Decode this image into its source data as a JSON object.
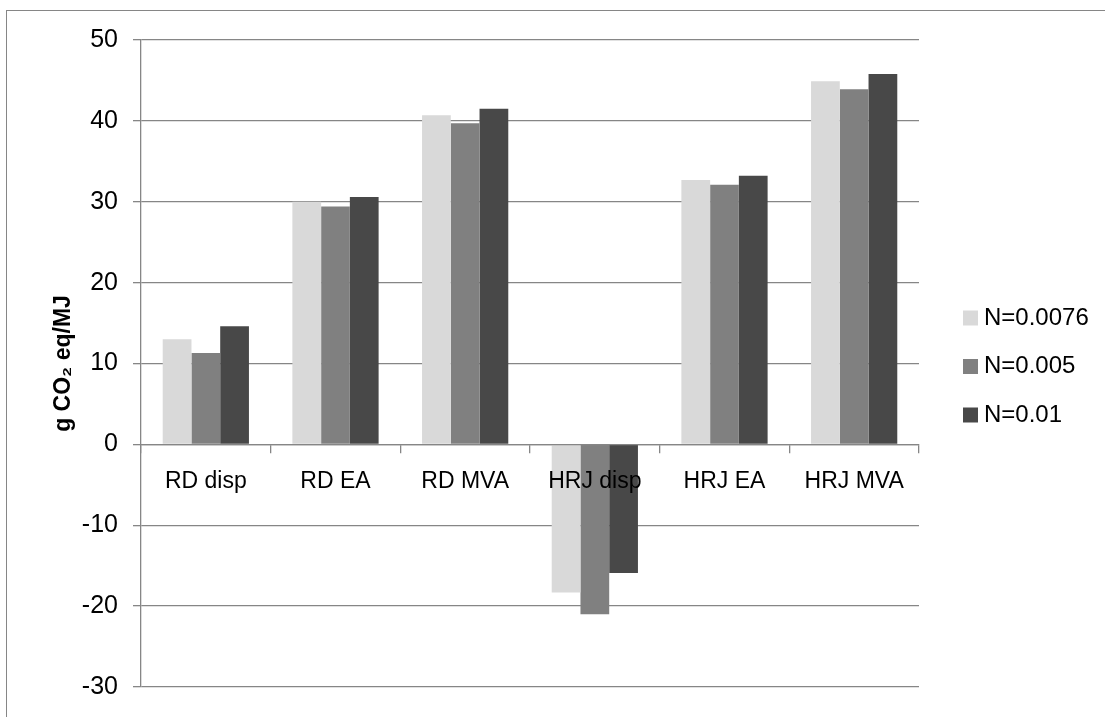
{
  "chart_data": {
    "type": "bar",
    "ylabel": "g CO₂ eq/MJ",
    "categories": [
      "RD disp",
      "RD EA",
      "RD MVA",
      "HRJ disp",
      "HRJ EA",
      "HRJ MVA"
    ],
    "series": [
      {
        "name": "N=0.0076",
        "color": "#d9d9d9",
        "values": [
          13.0,
          30.0,
          40.7,
          -18.3,
          32.7,
          44.9
        ]
      },
      {
        "name": "N=0.005",
        "color": "#808080",
        "values": [
          11.3,
          29.4,
          39.7,
          -21.0,
          32.1,
          43.9
        ]
      },
      {
        "name": "N=0.01",
        "color": "#484848",
        "values": [
          14.6,
          30.6,
          41.5,
          -15.9,
          33.2,
          45.8
        ]
      }
    ],
    "ylim": [
      -30,
      50
    ],
    "yticks": [
      -30,
      -20,
      -10,
      0,
      10,
      20,
      30,
      40,
      50
    ],
    "grid": "y",
    "legend": "right"
  }
}
